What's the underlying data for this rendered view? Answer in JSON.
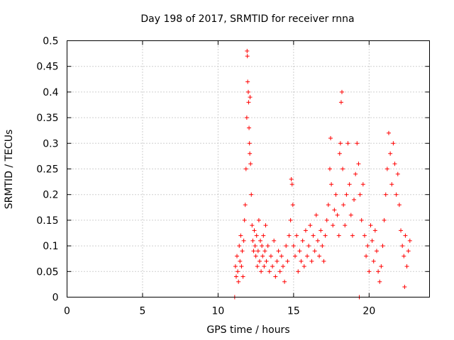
{
  "chart_data": {
    "type": "scatter",
    "title": "Day 198 of 2017, SRMTID for receiver rnna",
    "xlabel": "GPS time / hours",
    "ylabel": "SRMTID / TECUs",
    "xlim": [
      0,
      24
    ],
    "ylim": [
      0,
      0.5
    ],
    "xticks": [
      0,
      5,
      10,
      15,
      20
    ],
    "xtick_labels": [
      "0",
      "5",
      "10",
      "15",
      "20"
    ],
    "yticks": [
      0,
      0.05,
      0.1,
      0.15,
      0.2,
      0.25,
      0.3,
      0.35,
      0.4,
      0.45,
      0.5
    ],
    "ytick_labels": [
      "0",
      "0.05",
      "0.1",
      "0.15",
      "0.2",
      "0.25",
      "0.3",
      "0.35",
      "0.4",
      "0.45",
      "0.5"
    ],
    "grid": true,
    "marker": "plus",
    "color": "#ff0000",
    "series": [
      {
        "name": "SRMTID",
        "points": [
          [
            11.1,
            0.0
          ],
          [
            11.15,
            0.06
          ],
          [
            11.2,
            0.04
          ],
          [
            11.25,
            0.08
          ],
          [
            11.3,
            0.05
          ],
          [
            11.35,
            0.03
          ],
          [
            11.4,
            0.1
          ],
          [
            11.45,
            0.07
          ],
          [
            11.5,
            0.12
          ],
          [
            11.55,
            0.06
          ],
          [
            11.6,
            0.09
          ],
          [
            11.65,
            0.04
          ],
          [
            11.7,
            0.11
          ],
          [
            11.75,
            0.15
          ],
          [
            11.8,
            0.18
          ],
          [
            11.85,
            0.25
          ],
          [
            11.9,
            0.35
          ],
          [
            11.92,
            0.48
          ],
          [
            11.94,
            0.47
          ],
          [
            11.96,
            0.42
          ],
          [
            12.0,
            0.4
          ],
          [
            12.02,
            0.38
          ],
          [
            12.05,
            0.33
          ],
          [
            12.08,
            0.3
          ],
          [
            12.1,
            0.28
          ],
          [
            12.12,
            0.39
          ],
          [
            12.15,
            0.26
          ],
          [
            12.2,
            0.2
          ],
          [
            12.25,
            0.14
          ],
          [
            12.3,
            0.11
          ],
          [
            12.35,
            0.09
          ],
          [
            12.4,
            0.13
          ],
          [
            12.45,
            0.1
          ],
          [
            12.5,
            0.08
          ],
          [
            12.55,
            0.12
          ],
          [
            12.6,
            0.06
          ],
          [
            12.65,
            0.09
          ],
          [
            12.7,
            0.15
          ],
          [
            12.75,
            0.07
          ],
          [
            12.8,
            0.11
          ],
          [
            12.85,
            0.05
          ],
          [
            12.9,
            0.1
          ],
          [
            12.95,
            0.08
          ],
          [
            13.0,
            0.12
          ],
          [
            13.05,
            0.06
          ],
          [
            13.1,
            0.09
          ],
          [
            13.15,
            0.14
          ],
          [
            13.2,
            0.07
          ],
          [
            13.3,
            0.1
          ],
          [
            13.4,
            0.05
          ],
          [
            13.5,
            0.08
          ],
          [
            13.6,
            0.06
          ],
          [
            13.7,
            0.11
          ],
          [
            13.8,
            0.04
          ],
          [
            13.9,
            0.07
          ],
          [
            14.0,
            0.09
          ],
          [
            14.1,
            0.05
          ],
          [
            14.2,
            0.08
          ],
          [
            14.3,
            0.06
          ],
          [
            14.4,
            0.03
          ],
          [
            14.5,
            0.1
          ],
          [
            14.6,
            0.07
          ],
          [
            14.7,
            0.12
          ],
          [
            14.8,
            0.15
          ],
          [
            14.85,
            0.23
          ],
          [
            14.9,
            0.22
          ],
          [
            14.95,
            0.18
          ],
          [
            15.0,
            0.1
          ],
          [
            15.1,
            0.08
          ],
          [
            15.2,
            0.12
          ],
          [
            15.3,
            0.05
          ],
          [
            15.4,
            0.09
          ],
          [
            15.5,
            0.07
          ],
          [
            15.6,
            0.11
          ],
          [
            15.7,
            0.06
          ],
          [
            15.8,
            0.13
          ],
          [
            15.9,
            0.08
          ],
          [
            16.0,
            0.1
          ],
          [
            16.1,
            0.14
          ],
          [
            16.2,
            0.07
          ],
          [
            16.3,
            0.12
          ],
          [
            16.4,
            0.09
          ],
          [
            16.5,
            0.16
          ],
          [
            16.6,
            0.11
          ],
          [
            16.7,
            0.08
          ],
          [
            16.8,
            0.13
          ],
          [
            16.9,
            0.1
          ],
          [
            17.0,
            0.07
          ],
          [
            17.1,
            0.12
          ],
          [
            17.2,
            0.15
          ],
          [
            17.3,
            0.18
          ],
          [
            17.4,
            0.25
          ],
          [
            17.45,
            0.31
          ],
          [
            17.5,
            0.22
          ],
          [
            17.6,
            0.14
          ],
          [
            17.7,
            0.17
          ],
          [
            17.8,
            0.2
          ],
          [
            17.9,
            0.16
          ],
          [
            18.0,
            0.12
          ],
          [
            18.05,
            0.28
          ],
          [
            18.1,
            0.3
          ],
          [
            18.15,
            0.38
          ],
          [
            18.2,
            0.4
          ],
          [
            18.25,
            0.25
          ],
          [
            18.3,
            0.18
          ],
          [
            18.4,
            0.14
          ],
          [
            18.5,
            0.2
          ],
          [
            18.6,
            0.3
          ],
          [
            18.7,
            0.22
          ],
          [
            18.8,
            0.16
          ],
          [
            18.9,
            0.12
          ],
          [
            19.0,
            0.19
          ],
          [
            19.1,
            0.24
          ],
          [
            19.2,
            0.3
          ],
          [
            19.3,
            0.26
          ],
          [
            19.35,
            0.0
          ],
          [
            19.4,
            0.2
          ],
          [
            19.5,
            0.15
          ],
          [
            19.6,
            0.22
          ],
          [
            19.7,
            0.12
          ],
          [
            19.8,
            0.08
          ],
          [
            19.9,
            0.1
          ],
          [
            20.0,
            0.05
          ],
          [
            20.1,
            0.14
          ],
          [
            20.2,
            0.11
          ],
          [
            20.3,
            0.07
          ],
          [
            20.4,
            0.13
          ],
          [
            20.5,
            0.09
          ],
          [
            20.6,
            0.05
          ],
          [
            20.7,
            0.03
          ],
          [
            20.8,
            0.06
          ],
          [
            20.9,
            0.1
          ],
          [
            21.0,
            0.15
          ],
          [
            21.1,
            0.2
          ],
          [
            21.2,
            0.25
          ],
          [
            21.3,
            0.32
          ],
          [
            21.4,
            0.28
          ],
          [
            21.5,
            0.22
          ],
          [
            21.6,
            0.3
          ],
          [
            21.7,
            0.26
          ],
          [
            21.8,
            0.2
          ],
          [
            21.9,
            0.24
          ],
          [
            22.0,
            0.18
          ],
          [
            22.1,
            0.13
          ],
          [
            22.2,
            0.1
          ],
          [
            22.3,
            0.08
          ],
          [
            22.35,
            0.02
          ],
          [
            22.4,
            0.12
          ],
          [
            22.5,
            0.06
          ],
          [
            22.6,
            0.09
          ],
          [
            22.7,
            0.11
          ]
        ]
      }
    ]
  }
}
